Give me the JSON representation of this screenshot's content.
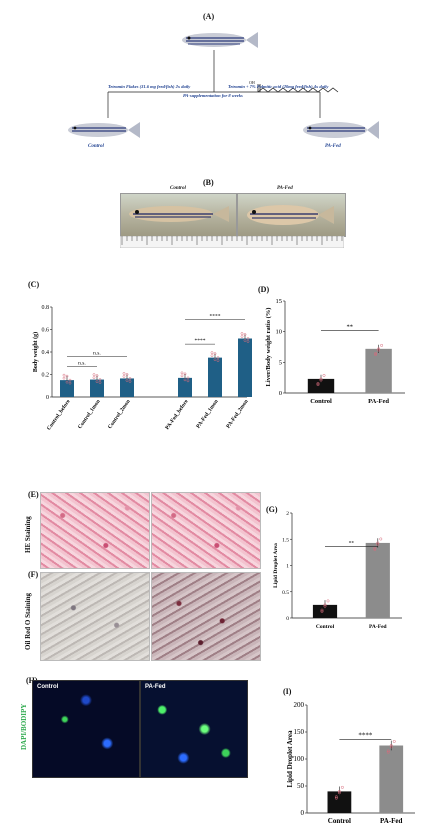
{
  "panels": {
    "a": {
      "label": "(A)",
      "diet_control": "Tetramin Flakes (31.6 mg feed/fish) 2x daily",
      "diet_pa": "Tetramin + 7% Palmitic acid (20mg feed/fish) 4x daily",
      "duration": "PA-supplementation for 8 weeks",
      "control": "Control",
      "pafed": "PA-Fed",
      "oh_label": "OH"
    },
    "b": {
      "label": "(B)",
      "control": "Control",
      "pafed": "PA-Fed"
    },
    "c": {
      "label": "(C)"
    },
    "d": {
      "label": "(D)"
    },
    "e": {
      "label": "(E)",
      "side_label": "HE Staining"
    },
    "f": {
      "label": "(F)",
      "side_label": "Oil Red O Staining"
    },
    "g": {
      "label": "(G)"
    },
    "h": {
      "label": "(H)",
      "side_label": "DAPI/BODIPY",
      "control": "Control",
      "pafed": "PA-Fed"
    },
    "i": {
      "label": "(I)"
    }
  },
  "chart_data": [
    {
      "id": "C",
      "type": "bar",
      "categories": [
        "Control_before",
        "Control_1mon",
        "Control_2mon",
        "PA-Fed_before",
        "PA-Fed_1mon",
        "PA-Fed_2mon"
      ],
      "values": [
        0.15,
        0.155,
        0.165,
        0.17,
        0.35,
        0.52
      ],
      "ylabel": "Body weight (g)",
      "ylim": [
        0,
        0.8
      ],
      "yticks": [
        "0",
        "0.2",
        "0.4",
        "0.6",
        "0.8"
      ],
      "significance": [
        "n.s.",
        "n.s.",
        "****",
        "****"
      ],
      "bar_color": "#1f5f86"
    },
    {
      "id": "D",
      "type": "bar",
      "categories": [
        "Control",
        "PA-Fed"
      ],
      "values": [
        2.3,
        7.2
      ],
      "ylabel": "Liver/Body weight ratio (%)",
      "ylim": [
        0,
        15
      ],
      "yticks": [
        "0",
        "5",
        "10",
        "15"
      ],
      "significance": "**",
      "bar_colors": [
        "#111111",
        "#8c8c8c"
      ]
    },
    {
      "id": "G",
      "type": "bar",
      "categories": [
        "Control",
        "PA-Fed"
      ],
      "values": [
        0.25,
        1.43
      ],
      "ylabel": "Lipid Droplet Area",
      "ylim": [
        0,
        2
      ],
      "yticks": [
        "0",
        "0.5",
        "1",
        "1.5",
        "2"
      ],
      "significance": "**",
      "bar_colors": [
        "#111111",
        "#8c8c8c"
      ]
    },
    {
      "id": "I",
      "type": "bar",
      "categories": [
        "Control",
        "PA-Fed"
      ],
      "values": [
        40,
        125
      ],
      "ylabel": "Lipid Droplet Area",
      "ylim": [
        0,
        200
      ],
      "yticks": [
        "0",
        "50",
        "100",
        "150",
        "200"
      ],
      "significance": "****",
      "bar_colors": [
        "#111111",
        "#8c8c8c"
      ]
    }
  ]
}
